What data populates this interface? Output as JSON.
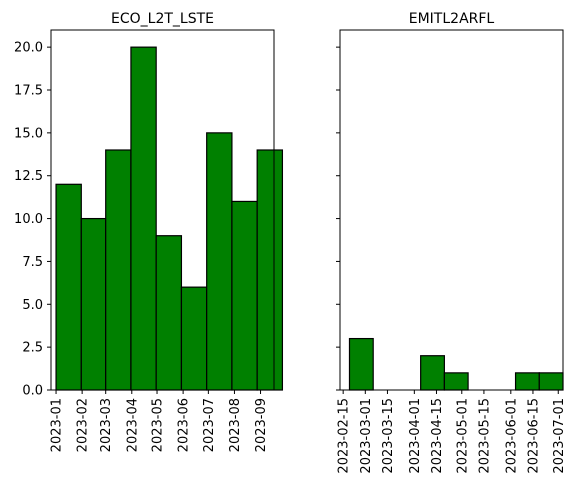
{
  "chart_data": [
    {
      "type": "bar",
      "title": "ECO_L2T_LSTE",
      "bar_color": "#008000",
      "edge_color": "#000000",
      "xlabel": "",
      "ylabel": "",
      "ylim": [
        0,
        21
      ],
      "yticks": [
        {
          "value": 0,
          "label": "0.0"
        },
        {
          "value": 2.5,
          "label": "2.5"
        },
        {
          "value": 5,
          "label": "5.0"
        },
        {
          "value": 7.5,
          "label": "7.5"
        },
        {
          "value": 10,
          "label": "10.0"
        },
        {
          "value": 12.5,
          "label": "12.5"
        },
        {
          "value": 15,
          "label": "15.0"
        },
        {
          "value": 17.5,
          "label": "17.5"
        },
        {
          "value": 20,
          "label": "20.0"
        }
      ],
      "xlim": [
        "2022-12-26",
        "2023-09-17"
      ],
      "xticks": [
        "2023-01",
        "2023-02",
        "2023-03",
        "2023-04",
        "2023-05",
        "2023-06",
        "2023-07",
        "2023-08",
        "2023-09"
      ],
      "bins": [
        {
          "start": "2023-01-01",
          "end": "2023-01-31",
          "value": 12
        },
        {
          "start": "2023-01-31",
          "end": "2023-03-01",
          "value": 10
        },
        {
          "start": "2023-03-01",
          "end": "2023-03-31",
          "value": 14
        },
        {
          "start": "2023-03-31",
          "end": "2023-04-30",
          "value": 20
        },
        {
          "start": "2023-04-30",
          "end": "2023-05-30",
          "value": 9
        },
        {
          "start": "2023-05-30",
          "end": "2023-06-29",
          "value": 6
        },
        {
          "start": "2023-06-29",
          "end": "2023-07-29",
          "value": 15
        },
        {
          "start": "2023-07-29",
          "end": "2023-08-28",
          "value": 11
        },
        {
          "start": "2023-08-28",
          "end": "2023-09-27",
          "value": 14
        }
      ]
    },
    {
      "type": "bar",
      "title": "EMITL2ARFL",
      "bar_color": "#008000",
      "edge_color": "#000000",
      "xlabel": "",
      "ylabel": "",
      "ylim": [
        0,
        21
      ],
      "shared_y": true,
      "xlim": [
        "2023-02-13",
        "2023-07-04"
      ],
      "xticks": [
        "2023-02-15",
        "2023-03-01",
        "2023-03-15",
        "2023-04-01",
        "2023-04-15",
        "2023-05-01",
        "2023-05-15",
        "2023-06-01",
        "2023-06-15",
        "2023-07-01"
      ],
      "bins": [
        {
          "start": "2023-02-19",
          "end": "2023-03-06",
          "value": 3
        },
        {
          "start": "2023-03-06",
          "end": "2023-03-21",
          "value": 0
        },
        {
          "start": "2023-03-21",
          "end": "2023-04-05",
          "value": 0
        },
        {
          "start": "2023-04-05",
          "end": "2023-04-20",
          "value": 2
        },
        {
          "start": "2023-04-20",
          "end": "2023-05-05",
          "value": 1
        },
        {
          "start": "2023-05-05",
          "end": "2023-05-20",
          "value": 0
        },
        {
          "start": "2023-05-20",
          "end": "2023-06-04",
          "value": 0
        },
        {
          "start": "2023-06-04",
          "end": "2023-06-19",
          "value": 1
        },
        {
          "start": "2023-06-19",
          "end": "2023-07-04",
          "value": 1
        }
      ]
    }
  ]
}
